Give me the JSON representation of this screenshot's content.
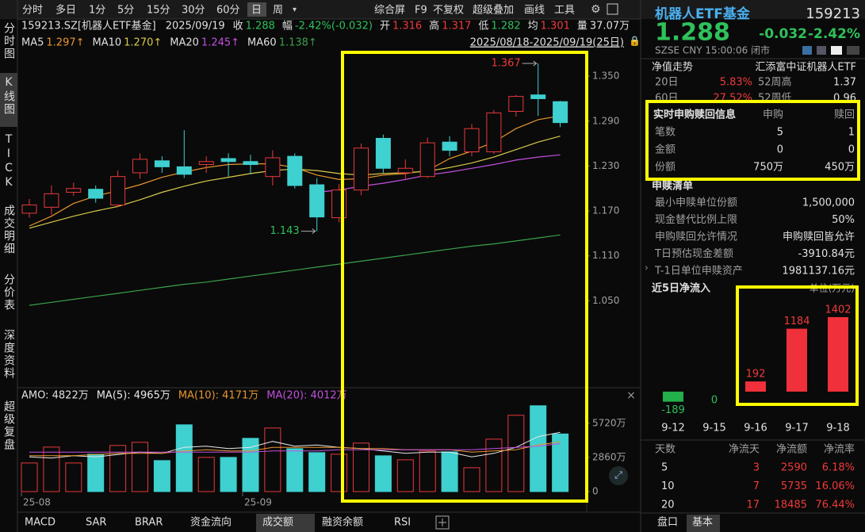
{
  "toolbar": {
    "periods": [
      "分时",
      "多日",
      "1分",
      "5分",
      "15分",
      "30分",
      "60分",
      "日",
      "周"
    ],
    "selected": 7,
    "tools": [
      "综合屏",
      "F9",
      "不复权",
      "超级叠加",
      "画线",
      "工具"
    ]
  },
  "side_tabs": {
    "items": [
      "分时图",
      "K线图",
      "TICK",
      "成交明细",
      "分价表",
      "深度资料",
      "超级复盘"
    ],
    "selected": 1
  },
  "info": {
    "code": "159213.SZ[机器人ETF基金]",
    "date": "2025/09/19",
    "fields": [
      {
        "label": "收",
        "value": "1.288",
        "color": "#2fc15b"
      },
      {
        "label": "幅",
        "value": "-2.42%(-0.032)",
        "color": "#2fc15b"
      },
      {
        "label": "开",
        "value": "1.316",
        "color": "#f03a3a"
      },
      {
        "label": "高",
        "value": "1.317",
        "color": "#f03a3a"
      },
      {
        "label": "低",
        "value": "1.282",
        "color": "#2fc15b"
      },
      {
        "label": "均",
        "value": "1.301",
        "color": "#f03a3a"
      },
      {
        "label": "量",
        "value": "37.07万",
        "color": "#e0e0e0"
      }
    ],
    "range": "2025/08/18-2025/09/19(25日)"
  },
  "chart_data": [
    {
      "type": "candlestick",
      "up_color": "#e8383d",
      "down_color": "#3fd0d0",
      "open": [
        1.167,
        1.175,
        1.195,
        1.199,
        1.178,
        1.221,
        1.237,
        1.229,
        1.232,
        1.24,
        1.236,
        1.216,
        1.243,
        1.205,
        1.161,
        1.198,
        1.267,
        1.221,
        1.216,
        1.262,
        1.249,
        1.249,
        1.303,
        1.325,
        1.316
      ],
      "high": [
        1.186,
        1.204,
        1.208,
        1.204,
        1.224,
        1.247,
        1.243,
        1.278,
        1.243,
        1.247,
        1.245,
        1.251,
        1.247,
        1.214,
        1.206,
        1.26,
        1.272,
        1.239,
        1.268,
        1.27,
        1.286,
        1.305,
        1.325,
        1.367,
        1.317
      ],
      "low": [
        1.161,
        1.165,
        1.19,
        1.181,
        1.175,
        1.213,
        1.221,
        1.214,
        1.221,
        1.216,
        1.219,
        1.204,
        1.2,
        1.143,
        1.155,
        1.191,
        1.221,
        1.213,
        1.214,
        1.243,
        1.243,
        1.246,
        1.296,
        1.297,
        1.282
      ],
      "close": [
        1.178,
        1.193,
        1.2,
        1.187,
        1.216,
        1.239,
        1.229,
        1.219,
        1.236,
        1.236,
        1.232,
        1.241,
        1.204,
        1.162,
        1.198,
        1.254,
        1.227,
        1.227,
        1.261,
        1.251,
        1.28,
        1.301,
        1.323,
        1.32,
        1.288
      ],
      "ylim": [
        0.935,
        1.384
      ],
      "yticks": [
        {
          "value": 1.35,
          "label": "1.350"
        },
        {
          "value": 1.29,
          "label": "1.290"
        },
        {
          "value": 1.23,
          "label": "1.230"
        },
        {
          "value": 1.17,
          "label": "1.170"
        },
        {
          "value": 1.11,
          "label": "1.110"
        },
        {
          "value": 1.05,
          "label": "1.050"
        }
      ],
      "series": [
        {
          "name": "MA5",
          "label": "1.297↑",
          "color": "#e8962e",
          "values": [
            1.15,
            1.163,
            1.18,
            1.19,
            1.197,
            1.205,
            1.215,
            1.222,
            1.228,
            1.232,
            1.233,
            1.233,
            1.228,
            1.218,
            1.212,
            1.213,
            1.218,
            1.22,
            1.224,
            1.24,
            1.25,
            1.262,
            1.28,
            1.292,
            1.297
          ]
        },
        {
          "name": "MA10",
          "label": "1.270↑",
          "color": "#d9c94a",
          "values": [
            1.147,
            1.155,
            1.163,
            1.17,
            1.176,
            1.185,
            1.195,
            1.203,
            1.21,
            1.215,
            1.22,
            1.224,
            1.226,
            1.224,
            1.22,
            1.218,
            1.22,
            1.221,
            1.223,
            1.228,
            1.234,
            1.242,
            1.252,
            1.262,
            1.27
          ]
        },
        {
          "name": "MA20",
          "label": "1.245↑",
          "color": "#c24fe0",
          "values": [
            null,
            null,
            null,
            null,
            null,
            null,
            null,
            null,
            null,
            null,
            null,
            null,
            null,
            1.195,
            1.198,
            1.203,
            1.207,
            1.212,
            1.218,
            1.222,
            1.227,
            1.232,
            1.238,
            1.242,
            1.245
          ]
        },
        {
          "name": "MA60",
          "label": "1.138↑",
          "color": "#3aa04a",
          "values": [
            1.044,
            1.048,
            1.052,
            1.056,
            1.06,
            1.064,
            1.068,
            1.072,
            1.075,
            1.079,
            1.083,
            1.087,
            1.091,
            1.095,
            1.099,
            1.103,
            1.107,
            1.111,
            1.115,
            1.119,
            1.123,
            1.126,
            1.13,
            1.134,
            1.138
          ]
        }
      ],
      "annotations": [
        {
          "label": "1.367",
          "value": 1.367,
          "index": 23,
          "color": "#f03a3a"
        },
        {
          "label": "1.143",
          "value": 1.143,
          "index": 13,
          "color": "#2fc15b"
        }
      ]
    },
    {
      "type": "bar",
      "title": "AMO: 4822万",
      "categories": [
        "25-08",
        null,
        null,
        null,
        null,
        null,
        null,
        null,
        null,
        null,
        "25-09",
        null,
        null,
        null,
        null,
        null,
        null,
        null,
        null,
        null,
        null,
        null,
        null,
        null,
        null
      ],
      "values": [
        2394,
        3724,
        2394,
        3126,
        3858,
        4124,
        2594,
        5587,
        2860,
        2860,
        4456,
        5320,
        3591,
        3259,
        3126,
        4057,
        2993,
        2660,
        3392,
        3325,
        1995,
        4389,
        6384,
        7182,
        4822
      ],
      "ylim": [
        0,
        7300
      ],
      "yticks": [
        {
          "value": 5720,
          "label": "5720万"
        },
        {
          "value": 2860,
          "label": "2860万"
        },
        0
      ],
      "series": [
        {
          "name": "MA(5): 4965万",
          "color": "#e8e8e8",
          "values": [
            2900,
            2800,
            3000,
            2900,
            3100,
            3300,
            3200,
            3700,
            3800,
            3600,
            3700,
            4200,
            3800,
            3900,
            3700,
            3600,
            3400,
            3200,
            3300,
            3300,
            2900,
            3200,
            3700,
            4600,
            4965
          ]
        },
        {
          "name": "MA(10): 4171万",
          "color": "#e8962e",
          "values": [
            3000,
            3000,
            3000,
            3100,
            3200,
            3200,
            3200,
            3400,
            3500,
            3400,
            3400,
            3700,
            3700,
            3700,
            3700,
            3600,
            3600,
            3500,
            3500,
            3500,
            3300,
            3400,
            3500,
            3900,
            4171
          ]
        },
        {
          "name": "MA(20): 4012万",
          "color": "#c24fe0",
          "values": [
            3300,
            3300,
            3300,
            3300,
            3300,
            3300,
            3300,
            3300,
            3300,
            3300,
            3300,
            3400,
            3400,
            3400,
            3500,
            3500,
            3500,
            3500,
            3500,
            3500,
            3500,
            3600,
            3700,
            3800,
            4012
          ]
        }
      ]
    },
    {
      "type": "bar",
      "title": "近5日净流入",
      "unit": "单位(万元)",
      "categories": [
        "9-12",
        "9-15",
        "9-16",
        "9-17",
        "9-18"
      ],
      "values": [
        -189,
        0,
        192,
        1184,
        1402
      ],
      "up_color": "#f0303a",
      "down_color": "#22b04a",
      "ylim": [
        -500,
        1700
      ]
    }
  ],
  "bottom_tabs": {
    "items": [
      "MACD",
      "SAR",
      "BRAR",
      "资金流向",
      "成交额",
      "融资余额",
      "RSI"
    ],
    "selected": 4
  },
  "panel": {
    "name": "机器人ETF基金",
    "code": "159213",
    "price": "1.288",
    "change": "-0.032",
    "pct": "-2.42%",
    "meta": "SZSE  CNY  15:00:06  闭市",
    "nav": {
      "title": "净值走势",
      "fund": "汇添富中证机器人ETF",
      "rows": [
        [
          "20日",
          "5.83%",
          "52周高",
          "1.37"
        ],
        [
          "60日",
          "27.52%",
          "52周低",
          "0.96"
        ]
      ]
    },
    "realtime": {
      "title": "实时申购赎回信息",
      "cols": [
        "申购",
        "赎回"
      ],
      "rows": [
        [
          "笔数",
          "5",
          "1"
        ],
        [
          "金额",
          "0",
          "0"
        ],
        [
          "份额",
          "750万",
          "450万"
        ]
      ]
    },
    "list": {
      "title": "申赎清单",
      "rows": [
        [
          "最小申赎单位份额",
          "1,500,000"
        ],
        [
          "现金替代比例上限",
          "50%"
        ],
        [
          "申购赎回允许情况",
          "申购赎回皆允许"
        ],
        [
          "T日预估现金差额",
          "-3910.84元"
        ],
        [
          "T-1日单位申赎资产",
          "1981137.16元"
        ]
      ]
    },
    "table": {
      "header": [
        "天数",
        "净流天",
        "净流额",
        "净流率"
      ],
      "rows": [
        [
          "5",
          "3",
          "2590",
          "6.18%"
        ],
        [
          "10",
          "7",
          "5735",
          "16.06%"
        ],
        [
          "20",
          "17",
          "18485",
          "76.44%"
        ]
      ]
    },
    "tabs": [
      "盘口",
      "基本"
    ]
  }
}
